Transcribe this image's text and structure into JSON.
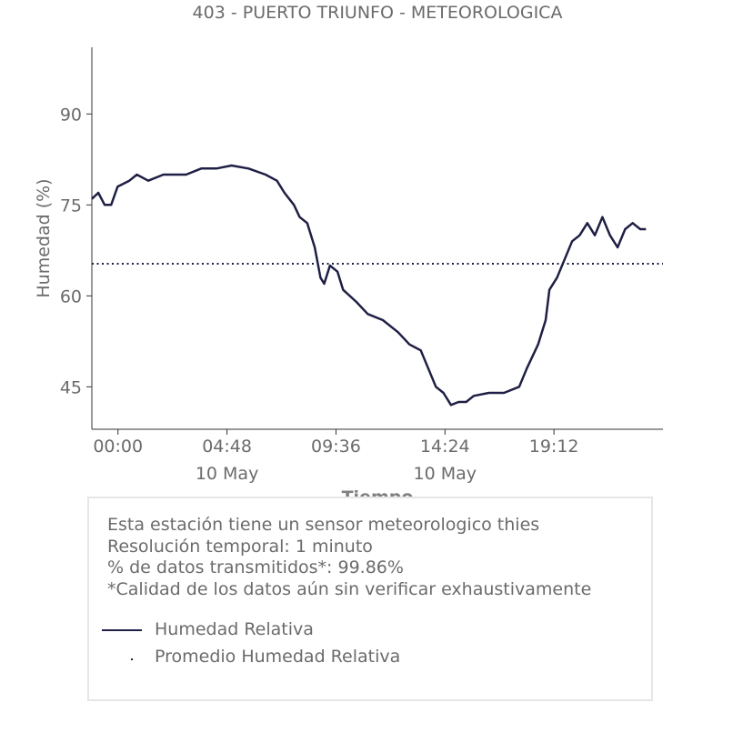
{
  "chart_data": {
    "type": "line",
    "title": "403 - PUERTO TRIUNFO - METEOROLOGICA",
    "xlabel": "Tiempo",
    "ylabel": "Humedad (%)",
    "ylim": [
      38,
      101
    ],
    "xlim": [
      "2024-05-09T22:51",
      "2024-05-11T00:00"
    ],
    "yticks": [
      45,
      60,
      75,
      90
    ],
    "xticks": [
      {
        "t": "2024-05-10T00:00",
        "label": "00:00",
        "sublabel": ""
      },
      {
        "t": "2024-05-10T04:48",
        "label": "04:48",
        "sublabel": "10 May"
      },
      {
        "t": "2024-05-10T09:36",
        "label": "09:36",
        "sublabel": ""
      },
      {
        "t": "2024-05-10T14:24",
        "label": "14:24",
        "sublabel": "10 May"
      },
      {
        "t": "2024-05-10T19:12",
        "label": "19:12",
        "sublabel": ""
      }
    ],
    "grid": false,
    "series": [
      {
        "name": "Humedad Relativa",
        "color": "#1f1f45",
        "style": "solid",
        "points": [
          [
            "2024-05-09T22:51",
            76
          ],
          [
            "2024-05-09T23:08",
            77
          ],
          [
            "2024-05-09T23:25",
            75
          ],
          [
            "2024-05-09T23:42",
            75
          ],
          [
            "2024-05-09T23:59",
            78
          ],
          [
            "2024-05-10T00:30",
            79
          ],
          [
            "2024-05-10T00:50",
            80
          ],
          [
            "2024-05-10T01:20",
            79
          ],
          [
            "2024-05-10T02:00",
            80
          ],
          [
            "2024-05-10T03:00",
            80
          ],
          [
            "2024-05-10T03:40",
            81
          ],
          [
            "2024-05-10T04:20",
            81
          ],
          [
            "2024-05-10T05:00",
            81.5
          ],
          [
            "2024-05-10T05:45",
            81
          ],
          [
            "2024-05-10T06:30",
            80
          ],
          [
            "2024-05-10T07:00",
            79
          ],
          [
            "2024-05-10T07:20",
            77
          ],
          [
            "2024-05-10T07:45",
            75
          ],
          [
            "2024-05-10T08:00",
            73
          ],
          [
            "2024-05-10T08:20",
            72
          ],
          [
            "2024-05-10T08:40",
            68
          ],
          [
            "2024-05-10T08:55",
            63
          ],
          [
            "2024-05-10T09:05",
            62
          ],
          [
            "2024-05-10T09:20",
            65
          ],
          [
            "2024-05-10T09:40",
            64
          ],
          [
            "2024-05-10T09:55",
            61
          ],
          [
            "2024-05-10T10:30",
            59
          ],
          [
            "2024-05-10T11:00",
            57
          ],
          [
            "2024-05-10T11:40",
            56
          ],
          [
            "2024-05-10T12:20",
            54
          ],
          [
            "2024-05-10T12:50",
            52
          ],
          [
            "2024-05-10T13:20",
            51
          ],
          [
            "2024-05-10T13:40",
            48
          ],
          [
            "2024-05-10T14:00",
            45
          ],
          [
            "2024-05-10T14:20",
            44
          ],
          [
            "2024-05-10T14:40",
            42
          ],
          [
            "2024-05-10T15:00",
            42.5
          ],
          [
            "2024-05-10T15:20",
            42.5
          ],
          [
            "2024-05-10T15:40",
            43.5
          ],
          [
            "2024-05-10T16:20",
            44
          ],
          [
            "2024-05-10T17:00",
            44
          ],
          [
            "2024-05-10T17:40",
            45
          ],
          [
            "2024-05-10T18:00",
            48
          ],
          [
            "2024-05-10T18:30",
            52
          ],
          [
            "2024-05-10T18:50",
            56
          ],
          [
            "2024-05-10T19:00",
            61
          ],
          [
            "2024-05-10T19:20",
            63
          ],
          [
            "2024-05-10T19:40",
            66
          ],
          [
            "2024-05-10T20:00",
            69
          ],
          [
            "2024-05-10T20:20",
            70
          ],
          [
            "2024-05-10T20:40",
            72
          ],
          [
            "2024-05-10T21:00",
            70
          ],
          [
            "2024-05-10T21:20",
            73
          ],
          [
            "2024-05-10T21:40",
            70
          ],
          [
            "2024-05-10T22:00",
            68
          ],
          [
            "2024-05-10T22:20",
            71
          ],
          [
            "2024-05-10T22:40",
            72
          ],
          [
            "2024-05-10T23:00",
            71
          ],
          [
            "2024-05-10T23:15",
            71
          ]
        ]
      },
      {
        "name": "Promedio Humedad Relativa",
        "color": "#1f1f45",
        "style": "dotted",
        "y": 65.3
      }
    ]
  },
  "info": {
    "line1": "Esta estación tiene un sensor meteorologico thies",
    "line2": "Resolución temporal: 1 minuto",
    "line3": "% de datos transmitidos*: 99.86%",
    "line4": "*Calidad de los datos aún sin verificar exhaustivamente"
  },
  "legend": {
    "solid_label": "Humedad Relativa",
    "dotted_label": "Promedio Humedad Relativa"
  }
}
